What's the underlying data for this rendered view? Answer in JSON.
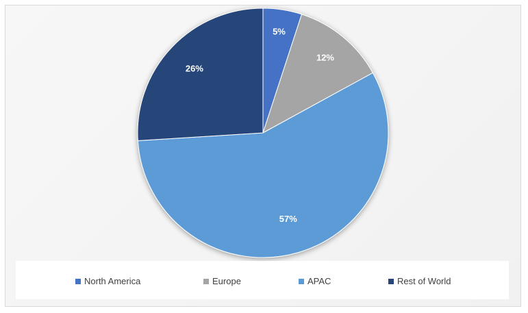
{
  "chart_data": {
    "type": "pie",
    "categories": [
      "North America",
      "Europe",
      "APAC",
      "Rest of World"
    ],
    "values": [
      5,
      12,
      57,
      26
    ],
    "data_labels": [
      "5%",
      "12%",
      "57%",
      "26%"
    ],
    "colors": [
      "#4472c4",
      "#a5a5a5",
      "#5b9bd5",
      "#264478"
    ],
    "legend_position": "bottom",
    "title": ""
  },
  "legend": {
    "items": [
      {
        "label": "North America",
        "color": "#4472c4"
      },
      {
        "label": "Europe",
        "color": "#a5a5a5"
      },
      {
        "label": "APAC",
        "color": "#5b9bd5"
      },
      {
        "label": "Rest of World",
        "color": "#264478"
      }
    ]
  }
}
